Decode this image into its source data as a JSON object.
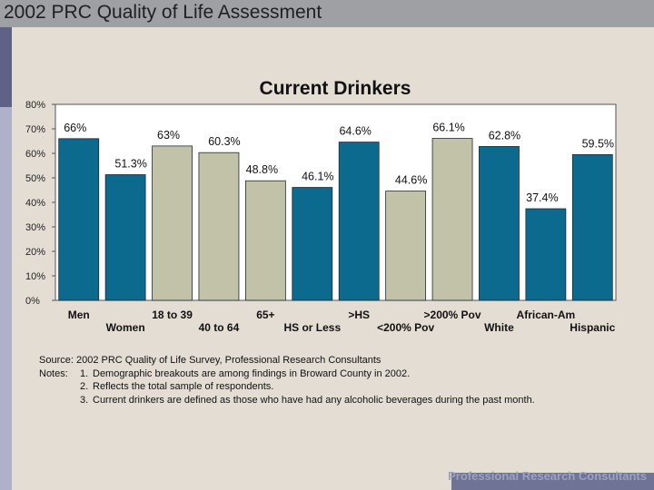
{
  "header": {
    "title": "2002 PRC Quality of Life Assessment"
  },
  "chart_data": {
    "type": "bar",
    "title": "Current Drinkers",
    "ylim": [
      0,
      80
    ],
    "yticks": [
      "0%",
      "10%",
      "20%",
      "30%",
      "40%",
      "50%",
      "60%",
      "70%",
      "80%"
    ],
    "ytick_values": [
      0,
      10,
      20,
      30,
      40,
      50,
      60,
      70,
      80
    ],
    "categories": [
      "Men",
      "Women",
      "18 to 39",
      "40 to 64",
      "65+",
      "HS or Less",
      ">HS",
      "<200% Pov",
      ">200% Pov",
      "White",
      "African-Am",
      "Hispanic"
    ],
    "values": [
      66,
      51.3,
      63,
      60.3,
      48.8,
      46.1,
      64.6,
      44.6,
      66.1,
      62.8,
      37.4,
      59.5
    ],
    "value_labels": [
      "66%",
      "51.3%",
      "63%",
      "60.3%",
      "48.8%",
      "46.1%",
      "64.6%",
      "44.6%",
      "66.1%",
      "62.8%",
      "37.4%",
      "59.5%"
    ],
    "bar_colors": [
      "#0b6a8e",
      "#0b6a8e",
      "#c2c2a8",
      "#c2c2a8",
      "#c2c2a8",
      "#0b6a8e",
      "#0b6a8e",
      "#c2c2a8",
      "#c2c2a8",
      "#0b6a8e",
      "#0b6a8e",
      "#0b6a8e"
    ],
    "grid": false
  },
  "notes": {
    "source": "Source: 2002 PRC Quality of Life Survey, Professional Research Consultants",
    "notes_label": "Notes:",
    "items": [
      {
        "num": "1.",
        "text": "Demographic breakouts are among findings in Broward County in 2002."
      },
      {
        "num": "2.",
        "text": "Reflects the total sample of respondents."
      },
      {
        "num": "3.",
        "text": "Current drinkers are defined as those who have had any alcoholic beverages during the past month."
      }
    ]
  },
  "footer": {
    "text": "Professional Research Consultants"
  },
  "colors": {
    "accent_blue": "#0b6a8e",
    "neutral_bar": "#c2c2a8",
    "background": "#e4ddd4"
  }
}
